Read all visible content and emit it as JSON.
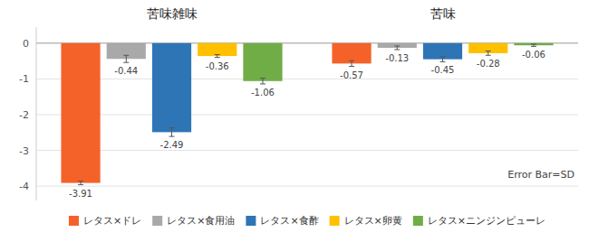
{
  "chart_data": {
    "type": "bar",
    "categories": [
      "苦味雑味",
      "苦味"
    ],
    "series": [
      {
        "name": "レタス×ドレ",
        "color": "#F4622A",
        "values": [
          -3.91,
          -0.57
        ],
        "errors": [
          0.05,
          0.08
        ]
      },
      {
        "name": "レタス×食用油",
        "color": "#A9A9A9",
        "values": [
          -0.44,
          -0.13
        ],
        "errors": [
          0.1,
          0.05
        ]
      },
      {
        "name": "レタス×食酢",
        "color": "#2E75B6",
        "values": [
          -2.49,
          -0.45
        ],
        "errors": [
          0.12,
          0.07
        ]
      },
      {
        "name": "レタス×卵黄",
        "color": "#FFC000",
        "values": [
          -0.36,
          -0.28
        ],
        "errors": [
          0.04,
          0.06
        ]
      },
      {
        "name": "レタス×ニンジンピューレ",
        "color": "#70AD47",
        "values": [
          -1.06,
          -0.06
        ],
        "errors": [
          0.08,
          0.03
        ]
      }
    ],
    "ylim": [
      -4.4,
      0.45
    ],
    "yticks": [
      0,
      -1,
      -2,
      -3,
      -4
    ],
    "grid": true,
    "legend": "bottom",
    "data_labels": true,
    "annotation": "Error Bar=SD"
  }
}
